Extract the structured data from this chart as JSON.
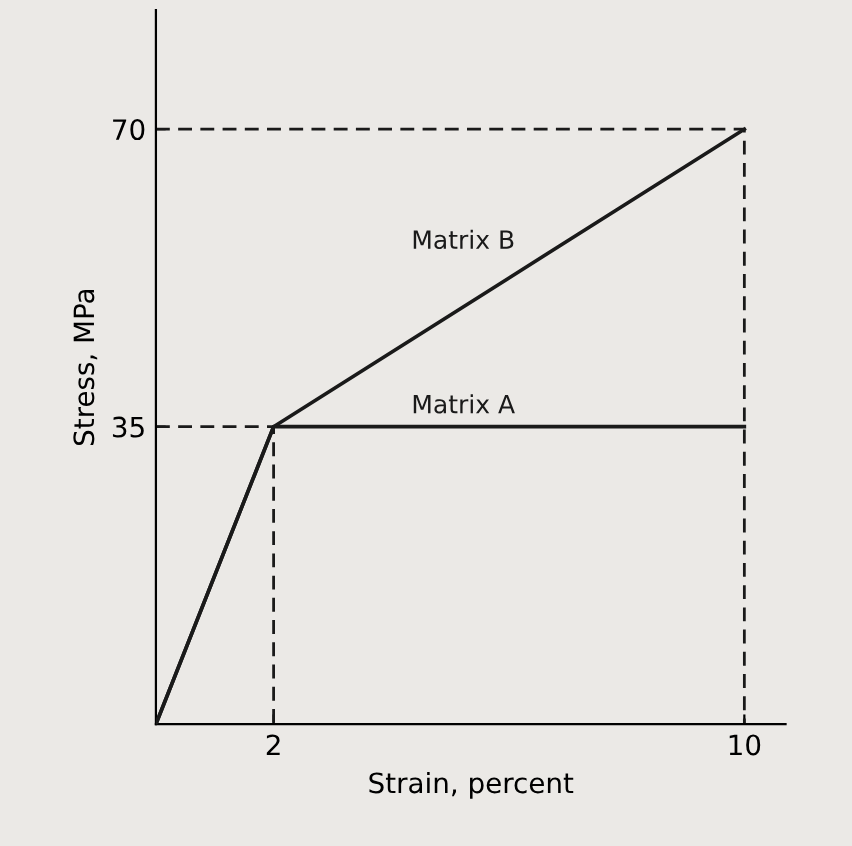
{
  "chart_data": {
    "type": "line",
    "xlabel": "Strain, percent",
    "ylabel": "Stress, MPa",
    "series": [
      {
        "name": "Matrix B",
        "color": "#1a1a1a",
        "x": [
          0,
          2,
          10
        ],
        "values": [
          0,
          35,
          70
        ]
      },
      {
        "name": "Matrix A",
        "color": "#1a1a1a",
        "x": [
          0,
          2,
          10
        ],
        "values": [
          0,
          35,
          35
        ]
      },
      {
        "color": "#1a1a1a",
        "x": [
          0,
          10,
          10
        ],
        "values": [
          70,
          70,
          0
        ],
        "line_style": "dashed"
      },
      {
        "color": "#1a1a1a",
        "x": [
          0,
          2,
          2
        ],
        "values": [
          35,
          35,
          0
        ],
        "line_style": "dashed"
      }
    ],
    "xlim": [
      0,
      10.7
    ],
    "ylim": [
      0,
      84
    ],
    "xticks": [
      2,
      10
    ],
    "yticks": [
      35,
      70
    ],
    "grid": false
  }
}
